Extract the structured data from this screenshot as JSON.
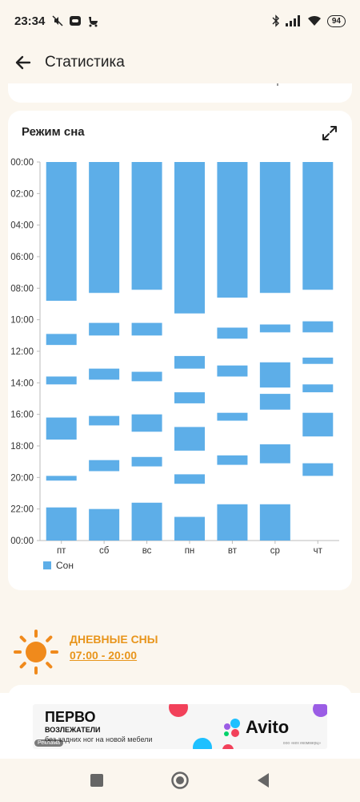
{
  "status_bar": {
    "time": "23:34",
    "battery": "94"
  },
  "app_bar": {
    "title": "Статистика"
  },
  "card": {
    "title": "Режим сна",
    "legend_label": "Сон"
  },
  "chart_data": {
    "type": "bar",
    "subtype": "floating-range",
    "orientation": "vertical",
    "y_unit": "hours of day",
    "y_inverted": true,
    "ylim": [
      0,
      24
    ],
    "y_ticks": [
      "00:00",
      "02:00",
      "04:00",
      "06:00",
      "08:00",
      "10:00",
      "12:00",
      "14:00",
      "16:00",
      "18:00",
      "20:00",
      "22:00",
      "00:00"
    ],
    "categories": [
      "пт",
      "сб",
      "вс",
      "пн",
      "вт",
      "ср",
      "чт"
    ],
    "color": "#5daee8",
    "legend_position": "bottom-left",
    "series": [
      {
        "name": "Сон",
        "ranges": [
          [
            [
              0,
              8.8
            ],
            [
              10.9,
              11.6
            ],
            [
              13.6,
              14.1
            ],
            [
              16.2,
              17.6
            ],
            [
              19.9,
              20.2
            ],
            [
              21.9,
              24
            ]
          ],
          [
            [
              0,
              8.3
            ],
            [
              10.2,
              11.0
            ],
            [
              13.1,
              13.8
            ],
            [
              16.1,
              16.7
            ],
            [
              18.9,
              19.6
            ],
            [
              22.0,
              24
            ]
          ],
          [
            [
              0,
              8.1
            ],
            [
              10.2,
              11.0
            ],
            [
              13.3,
              13.9
            ],
            [
              16.0,
              17.1
            ],
            [
              18.7,
              19.3
            ],
            [
              21.6,
              24
            ]
          ],
          [
            [
              0,
              9.6
            ],
            [
              12.3,
              13.1
            ],
            [
              14.6,
              15.3
            ],
            [
              16.8,
              18.3
            ],
            [
              19.8,
              20.4
            ],
            [
              22.5,
              24
            ]
          ],
          [
            [
              0,
              8.6
            ],
            [
              10.5,
              11.2
            ],
            [
              12.9,
              13.6
            ],
            [
              15.9,
              16.4
            ],
            [
              18.6,
              19.2
            ],
            [
              21.7,
              24
            ]
          ],
          [
            [
              0,
              8.3
            ],
            [
              10.3,
              10.8
            ],
            [
              12.7,
              14.3
            ],
            [
              14.7,
              15.7
            ],
            [
              17.9,
              19.1
            ],
            [
              21.7,
              24
            ]
          ],
          [
            [
              0,
              8.1
            ],
            [
              10.1,
              10.8
            ],
            [
              12.4,
              12.8
            ],
            [
              14.1,
              14.6
            ],
            [
              15.9,
              17.4
            ],
            [
              19.1,
              19.9
            ]
          ]
        ]
      }
    ]
  },
  "day_sleep": {
    "title": "ДНЕВНЫЕ СНЫ",
    "time_range": "07:00 - 20:00"
  },
  "ad": {
    "brand": "ПЕРВО",
    "line1": "ВОЗЛЕЖАТЕЛИ",
    "line2": "без задних ног на новой мебели",
    "advertiser": "Avito",
    "ad_mark": "Реклама",
    "fine_print": "ооо «кех екоммерц»"
  },
  "colors": {
    "accent": "#e8951c",
    "bar": "#5daee8",
    "background": "#fbf6ee"
  }
}
